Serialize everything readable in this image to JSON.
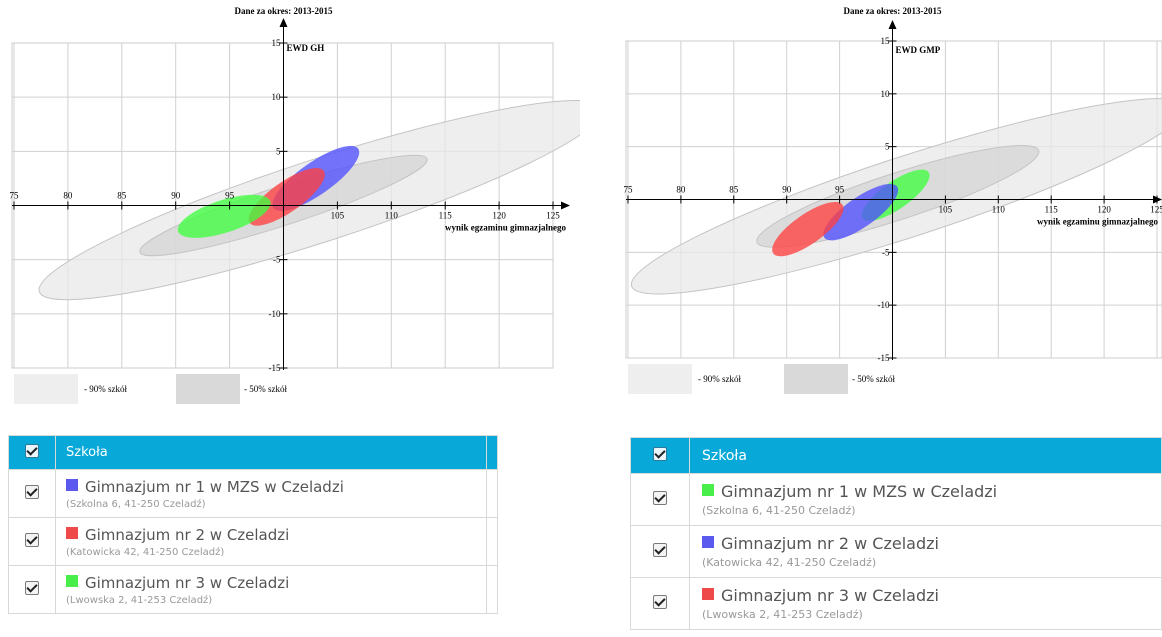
{
  "chart_data": [
    {
      "type": "scatter",
      "title": "Dane za okres: 2013-2015",
      "xlabel": "wynik egzaminu gimnazjalnego",
      "ylabel": "EWD GH",
      "xlim": [
        70,
        127
      ],
      "ylim": [
        -15,
        15
      ],
      "x_ticks": [
        75,
        80,
        85,
        90,
        95,
        100,
        105,
        110,
        115,
        120,
        125
      ],
      "x_tick_labels": [
        "75",
        "80",
        "85",
        "90",
        "95",
        "",
        "105",
        "110",
        "115",
        "120",
        "125"
      ],
      "y_ticks": [
        -15,
        -10,
        -5,
        0,
        5,
        10,
        15
      ],
      "y_tick_labels": [
        "-15",
        "-10",
        "-5",
        "",
        "5",
        "10",
        "15"
      ],
      "grid": true,
      "legend": [
        {
          "label": "- 90% szkół",
          "color": "#ececec"
        },
        {
          "label": "- 50% szkół",
          "color": "#d6d6d6"
        }
      ],
      "series": [
        {
          "name": "- 90% szkół",
          "color": "#e8e8e8",
          "cx": 103.5,
          "cy": 0.5,
          "rx": 27.5,
          "ry": 3.8,
          "angle": 18
        },
        {
          "name": "- 50% szkół",
          "color": "#d4d4d4",
          "cx": 100,
          "cy": 0,
          "rx": 14,
          "ry": 1.8,
          "angle": 18
        },
        {
          "name": "Gimnazjum nr 1 w MZS w Czeladzi",
          "color": "#5050ff",
          "cx": 103,
          "cy": 2.5,
          "rx": 4.8,
          "ry": 1.5,
          "angle": 35
        },
        {
          "name": "Gimnazjum nr 2 w Czeladzi",
          "color": "#ff4040",
          "cx": 100.3,
          "cy": 0.8,
          "rx": 4.2,
          "ry": 1.4,
          "angle": 35
        },
        {
          "name": "Gimnazjum nr 3 w Czeladzi",
          "color": "#40ff40",
          "cx": 94.5,
          "cy": -1,
          "rx": 4.5,
          "ry": 1.5,
          "angle": 18
        }
      ]
    },
    {
      "type": "scatter",
      "title": "Dane za okres: 2013-2015",
      "xlabel": "wynik egzaminu gimnazjalnego",
      "ylabel": "EWD GMP",
      "xlim": [
        70,
        127
      ],
      "ylim": [
        -15,
        15
      ],
      "x_ticks": [
        75,
        80,
        85,
        90,
        95,
        100,
        105,
        110,
        115,
        120,
        125
      ],
      "x_tick_labels": [
        "75",
        "80",
        "85",
        "90",
        "95",
        "",
        "105",
        "110",
        "115",
        "120",
        "125"
      ],
      "y_ticks": [
        -15,
        -10,
        -5,
        0,
        5,
        10,
        15
      ],
      "y_tick_labels": [
        "-15",
        "-10",
        "-5",
        "",
        "5",
        "10",
        "15"
      ],
      "grid": true,
      "legend": [
        {
          "label": "- 90% szkół",
          "color": "#ececec"
        },
        {
          "label": "- 50% szkół",
          "color": "#d6d6d6"
        }
      ],
      "series": [
        {
          "name": "- 90% szkół",
          "color": "#e8e8e8",
          "cx": 101.5,
          "cy": 0.3,
          "rx": 27.5,
          "ry": 3.8,
          "angle": 18
        },
        {
          "name": "- 50% szkół",
          "color": "#d4d4d4",
          "cx": 100.5,
          "cy": 0.3,
          "rx": 14,
          "ry": 2.2,
          "angle": 18
        },
        {
          "name": "Gimnazjum nr 1 w MZS w Czeladzi",
          "color": "#40ff40",
          "cx": 100.3,
          "cy": 0.4,
          "rx": 3.8,
          "ry": 1.3,
          "angle": 35
        },
        {
          "name": "Gimnazjum nr 2 w Czeladzi",
          "color": "#5050ff",
          "cx": 97,
          "cy": -1.2,
          "rx": 4.2,
          "ry": 1.4,
          "angle": 35
        },
        {
          "name": "Gimnazjum nr 3 w Czeladzi",
          "color": "#ff4040",
          "cx": 92,
          "cy": -2.8,
          "rx": 4,
          "ry": 1.4,
          "angle": 35
        }
      ]
    }
  ],
  "tables": [
    {
      "header": "Szkoła",
      "rows": [
        {
          "name": "Gimnazjum nr 1 w MZS w Czeladzi",
          "address": "(Szkolna 6, 41-250 Czeladź)",
          "color": "#5a5aee"
        },
        {
          "name": "Gimnazjum nr 2 w Czeladzi",
          "address": "(Katowicka 42, 41-250 Czeladź)",
          "color": "#ee4a4a"
        },
        {
          "name": "Gimnazjum nr 3 w Czeladzi",
          "address": "(Lwowska 2, 41-253 Czeladź)",
          "color": "#4aee4a"
        }
      ]
    },
    {
      "header": "Szkoła",
      "rows": [
        {
          "name": "Gimnazjum nr 1 w MZS w Czeladzi",
          "address": "(Szkolna 6, 41-250 Czeladź)",
          "color": "#4aee4a"
        },
        {
          "name": "Gimnazjum nr 2 w Czeladzi",
          "address": "(Katowicka 42, 41-250 Czeladź)",
          "color": "#5a5aee"
        },
        {
          "name": "Gimnazjum nr 3 w Czeladzi",
          "address": "(Lwowska 2, 41-253 Czeladź)",
          "color": "#ee4a4a"
        }
      ]
    }
  ]
}
